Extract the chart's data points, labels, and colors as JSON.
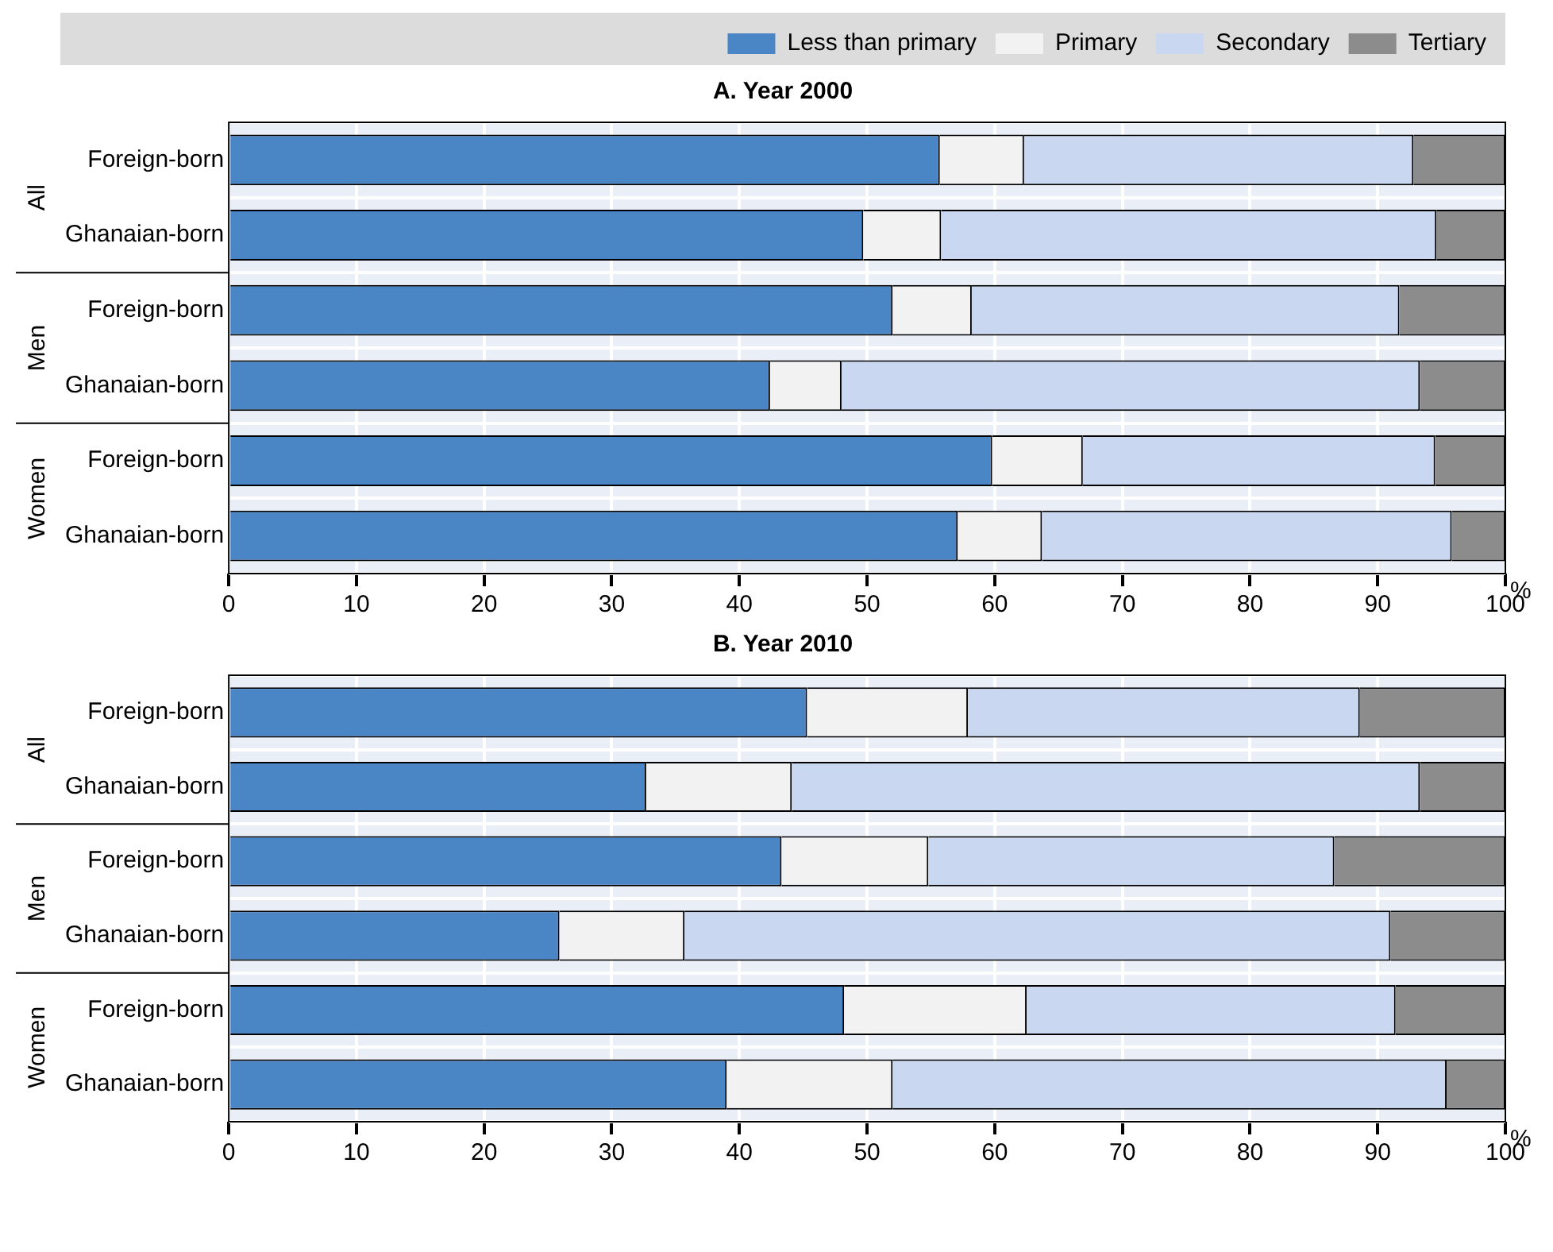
{
  "chart_data": [
    {
      "type": "bar",
      "title": "A. Year 2000",
      "orientation": "horizontal",
      "stacked": true,
      "legend": "top",
      "grid": true,
      "xlabel": "%",
      "annotations": [
        "All",
        "Men",
        "Women"
      ],
      "categories": [
        "Foreign-born",
        "Ghanaian-born",
        "Foreign-born",
        "Ghanaian-born",
        "Foreign-born",
        "Ghanaian-born"
      ],
      "xlim": [
        0,
        100
      ],
      "xticks": [
        0,
        10,
        20,
        30,
        40,
        50,
        60,
        70,
        80,
        90,
        100
      ],
      "series": [
        {
          "name": "Less than primary",
          "color": "#4a86c6",
          "values": [
            55.7,
            49.7,
            52.0,
            42.4,
            59.8,
            57.1
          ]
        },
        {
          "name": "Primary",
          "color": "#f2f2f2",
          "values": [
            6.6,
            6.1,
            6.2,
            5.6,
            7.1,
            6.6
          ]
        },
        {
          "name": "Secondary",
          "color": "#c9d8f0",
          "values": [
            30.5,
            38.8,
            33.5,
            45.3,
            27.6,
            32.1
          ]
        },
        {
          "name": "Tertiary",
          "color": "#8c8c8c",
          "values": [
            7.2,
            5.4,
            8.3,
            6.7,
            5.5,
            4.2
          ]
        }
      ]
    },
    {
      "type": "bar",
      "title": "B. Year 2010",
      "orientation": "horizontal",
      "stacked": true,
      "grid": true,
      "xlabel": "%",
      "annotations": [
        "All",
        "Men",
        "Women"
      ],
      "categories": [
        "Foreign-born",
        "Ghanaian-born",
        "Foreign-born",
        "Ghanaian-born",
        "Foreign-born",
        "Ghanaian-born"
      ],
      "xlim": [
        0,
        100
      ],
      "xticks": [
        0,
        10,
        20,
        30,
        40,
        50,
        60,
        70,
        80,
        90,
        100
      ],
      "series": [
        {
          "color": "#4a86c6",
          "values": [
            45.3,
            32.7,
            43.3,
            25.9,
            48.2,
            39.0
          ]
        },
        {
          "color": "#f2f2f2",
          "values": [
            12.6,
            11.4,
            11.5,
            9.8,
            14.3,
            13.0
          ]
        },
        {
          "color": "#c9d8f0",
          "values": [
            30.7,
            49.2,
            31.8,
            55.3,
            28.9,
            43.4
          ]
        },
        {
          "color": "#8c8c8c",
          "values": [
            11.4,
            6.7,
            13.4,
            9.0,
            8.6,
            4.6
          ]
        }
      ]
    }
  ]
}
